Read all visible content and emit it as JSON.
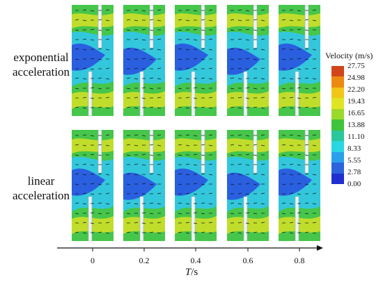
{
  "rows": [
    {
      "label_line1": "exponential",
      "label_line2": "acceleration"
    },
    {
      "label_line1": "linear",
      "label_line2": "acceleration"
    }
  ],
  "axis": {
    "title_italic": "T",
    "title_unit": "/s",
    "ticks": [
      "0",
      "0.2",
      "0.4",
      "0.6",
      "0.8"
    ]
  },
  "legend": {
    "title": "Velocity (m/s)",
    "ticks": [
      "27.75",
      "24.98",
      "22.20",
      "19.43",
      "16.65",
      "13.88",
      "11.10",
      "8.33",
      "5.55",
      "2.78",
      "0.00"
    ],
    "colors": [
      "#d2441a",
      "#ec8a12",
      "#f1c617",
      "#dfe522",
      "#9bd92b",
      "#3fc43c",
      "#2bc79a",
      "#2ad6e1",
      "#2aa0ea",
      "#2b64dd",
      "#1f2fd0"
    ]
  },
  "colors": {
    "panel_blue": "#2a5fe0",
    "panel_cyan": "#33c7dc",
    "panel_green": "#46c64a",
    "panel_yellow": "#d7e126",
    "vane": "#eef3f7"
  }
}
